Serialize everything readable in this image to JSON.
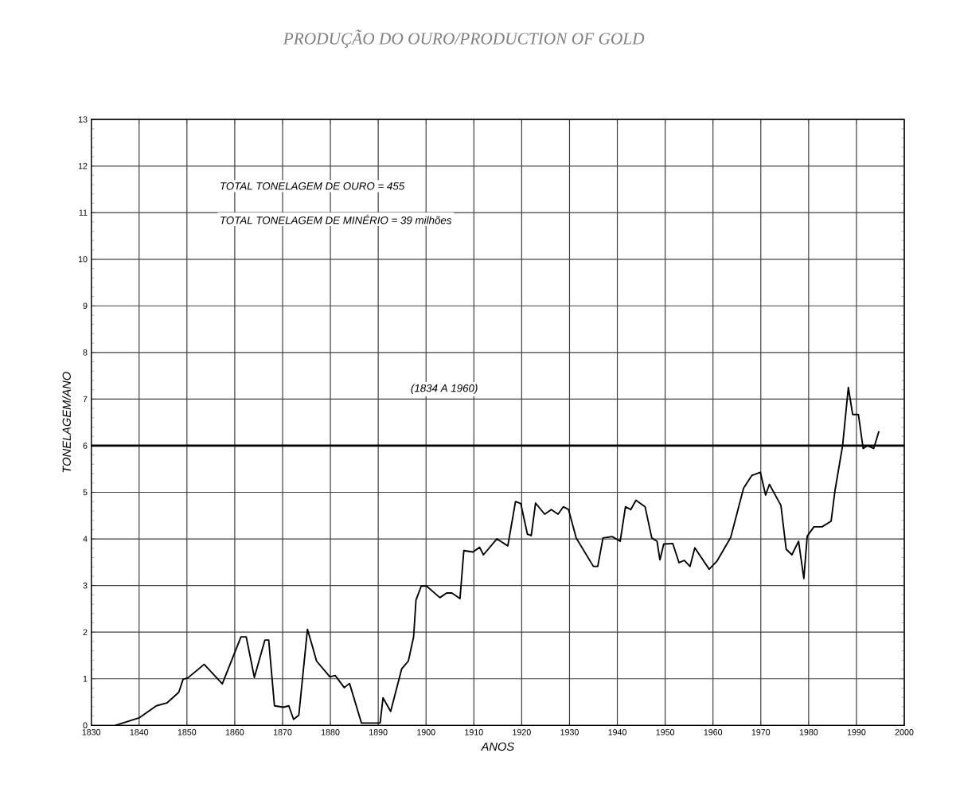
{
  "chart_data": {
    "type": "line",
    "title": "PRODUÇÃO DO OURO/PRODUCTION OF GOLD",
    "xlabel": "ANOS",
    "ylabel": "TONELAGEM/ANO",
    "annotations": [
      "TOTAL TONELAGEM DE OURO = 455",
      "TOTAL TONELAGEM DE MINÉRIO = 39 milhões",
      "(1834 A 1960)"
    ],
    "x": [
      1835,
      1840,
      1843.6,
      1845.8,
      1848.3,
      1849.2,
      1850.2,
      1853.6,
      1857.4,
      1861.3,
      1862.4,
      1864.1,
      1866.3,
      1867.1,
      1868.3,
      1870.2,
      1871.3,
      1872.3,
      1873.4,
      1875.2,
      1876,
      1877.1,
      1879.9,
      1881,
      1882.9,
      1884,
      1886.5,
      1890.4,
      1891,
      1892.6,
      1894.9,
      1896.3,
      1897.4,
      1897.9,
      1899,
      1900.1,
      1902.9,
      1904.3,
      1905.4,
      1907.1,
      1907.9,
      1909.8,
      1911.2,
      1912,
      1914.8,
      1917.1,
      1918.7,
      1919.8,
      1921.2,
      1922,
      1922.9,
      1924.8,
      1926.2,
      1927.6,
      1928.7,
      1929.8,
      1931.4,
      1935,
      1935.9,
      1937,
      1938.9,
      1940.6,
      1941.7,
      1942.8,
      1943.9,
      1945.8,
      1947.2,
      1948.3,
      1948.9,
      1949.7,
      1951.6,
      1952.9,
      1954,
      1955.2,
      1956.2,
      1959.2,
      1960.8,
      1963.7,
      1966.4,
      1968.1,
      1969.9,
      1971,
      1971.8,
      1974.2,
      1975.3,
      1976.5,
      1977.9,
      1979,
      1979.7,
      1981.1,
      1982.8,
      1984.7,
      1985.5,
      1987.1,
      1988.3,
      1989.2,
      1990.4,
      1991.4,
      1992.3,
      1993.6,
      1994.7
    ],
    "series": [
      {
        "color": "#000000",
        "values": [
          0,
          0.16,
          0.42,
          0.48,
          0.71,
          0.99,
          1.02,
          1.31,
          0.89,
          1.9,
          1.9,
          1.03,
          1.83,
          1.83,
          0.42,
          0.39,
          0.42,
          0.13,
          0.22,
          2.06,
          1.78,
          1.38,
          1.04,
          1.07,
          0.81,
          0.9,
          0.05,
          0.05,
          0.59,
          0.3,
          1.21,
          1.38,
          1.9,
          2.69,
          2.99,
          2.99,
          2.74,
          2.84,
          2.84,
          2.72,
          3.75,
          3.72,
          3.82,
          3.66,
          4,
          3.85,
          4.8,
          4.76,
          4.1,
          4.07,
          4.77,
          4.53,
          4.63,
          4.53,
          4.69,
          4.63,
          4.02,
          3.41,
          3.41,
          4.02,
          4.05,
          3.95,
          4.69,
          4.63,
          4.83,
          4.69,
          4.02,
          3.95,
          3.55,
          3.89,
          3.9,
          3.49,
          3.54,
          3.41,
          3.81,
          3.35,
          3.52,
          4.03,
          5.09,
          5.36,
          5.43,
          4.94,
          5.17,
          4.72,
          3.78,
          3.66,
          3.95,
          3.15,
          4.06,
          4.26,
          4.26,
          4.38,
          5.03,
          6,
          7.25,
          6.67,
          6.67,
          5.94,
          6,
          5.94,
          6.31
        ]
      }
    ],
    "xlim": [
      1830,
      2000
    ],
    "xticks": [
      1830,
      1840,
      1850,
      1860,
      1870,
      1880,
      1890,
      1900,
      1910,
      1920,
      1930,
      1940,
      1950,
      1960,
      1970,
      1980,
      1990,
      2000
    ],
    "ylim": [
      0,
      13
    ],
    "yticks": [
      0,
      1,
      2,
      3,
      4,
      5,
      6,
      7,
      8,
      9,
      10,
      11,
      12,
      13
    ],
    "grid": true,
    "marker": "none",
    "line_style": "solid",
    "ref_lines": [
      {
        "axis": "y",
        "value": 6,
        "color": "#000000"
      }
    ]
  }
}
